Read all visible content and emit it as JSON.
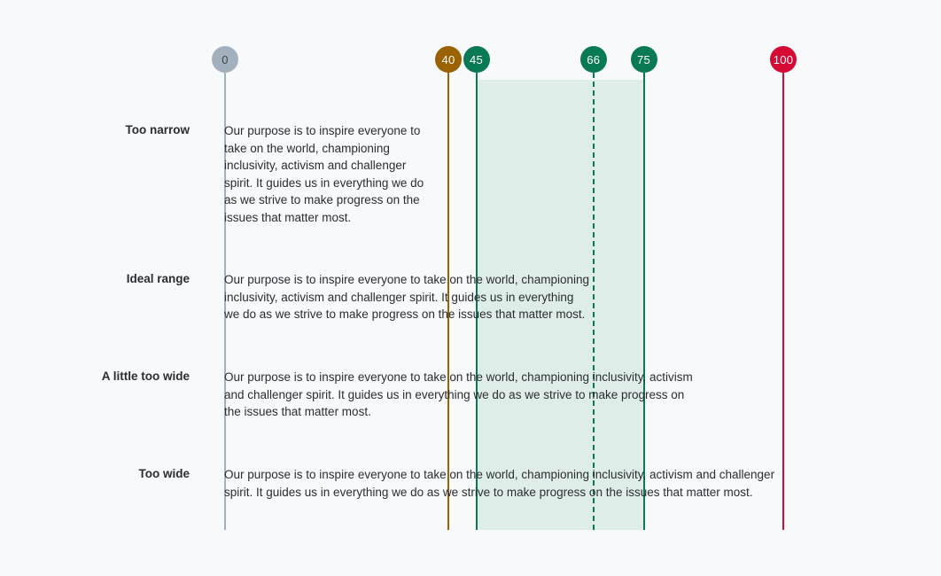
{
  "colors": {
    "neutral": "#a3b1bf",
    "warning": "#9a6200",
    "ideal": "#0a7a55",
    "danger": "#d50a35",
    "ideal_band": "#dfede8"
  },
  "markers": [
    {
      "id": "0",
      "label": "0",
      "value": 0,
      "color_key": "neutral",
      "line": "solid",
      "text_dark": true
    },
    {
      "id": "40",
      "label": "40",
      "value": 40,
      "color_key": "warning",
      "line": "solid"
    },
    {
      "id": "45",
      "label": "45",
      "value": 45,
      "color_key": "ideal",
      "line": "solid"
    },
    {
      "id": "66",
      "label": "66",
      "value": 66,
      "color_key": "ideal",
      "line": "dashed"
    },
    {
      "id": "75",
      "label": "75",
      "value": 75,
      "color_key": "ideal",
      "line": "solid"
    },
    {
      "id": "100",
      "label": "100",
      "value": 100,
      "color_key": "danger",
      "line": "solid"
    }
  ],
  "ideal_range": [
    45,
    75
  ],
  "rows": [
    {
      "label": "Too narrow",
      "lines": [
        "Our purpose is to inspire everyone to",
        "take on the world, championing",
        "inclusivity, activism and challenger",
        "spirit. It guides us in everything we do",
        "as we strive to make progress on the",
        "issues that matter most."
      ]
    },
    {
      "label": "Ideal range",
      "lines": [
        "Our purpose is to inspire everyone to take on the world, championing",
        "inclusivity, activism and challenger spirit. It guides us in everything",
        "we do as we strive to make progress on the issues that matter most."
      ]
    },
    {
      "label": "A little too wide",
      "lines": [
        "Our purpose is to inspire everyone to take on the world, championing inclusivity, activism",
        "and challenger spirit. It guides us in everything we do as we strive to make progress on",
        "the issues that matter most."
      ]
    },
    {
      "label": "Too wide",
      "lines": [
        "Our purpose is to inspire everyone to take on the world, championing inclusivity, activism and challenger",
        "spirit. It guides us in everything we do as we strive to make progress on the issues that matter most."
      ]
    }
  ]
}
